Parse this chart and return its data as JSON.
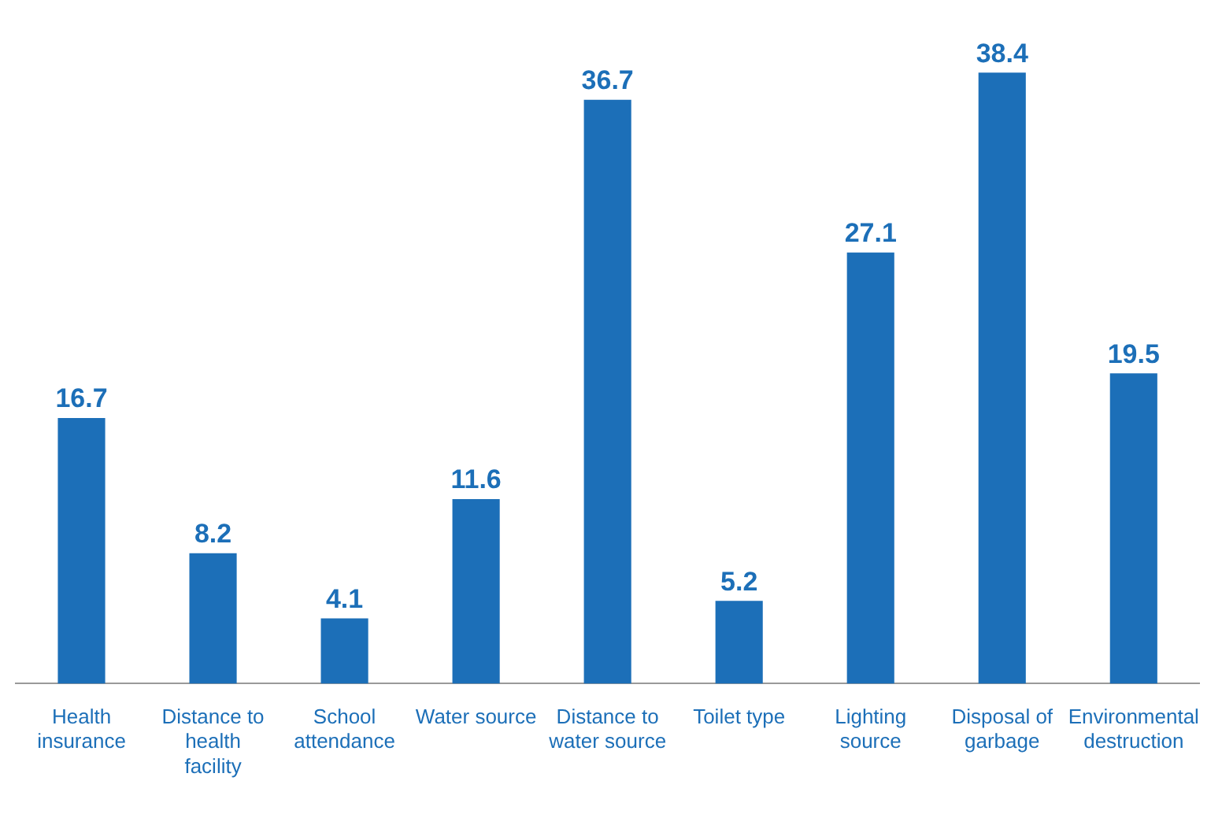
{
  "chart_data": {
    "type": "bar",
    "categories": [
      "Health insurance",
      "Distance to health facility",
      "School attendance",
      "Water source",
      "Distance to water source",
      "Toilet type",
      "Lighting source",
      "Disposal of garbage",
      "Environmental destruction"
    ],
    "values": [
      16.7,
      8.2,
      4.1,
      11.6,
      36.7,
      5.2,
      27.1,
      38.4,
      19.5
    ],
    "color": "#1c6fb8",
    "data_labels": true,
    "grid": false,
    "legend": false
  }
}
